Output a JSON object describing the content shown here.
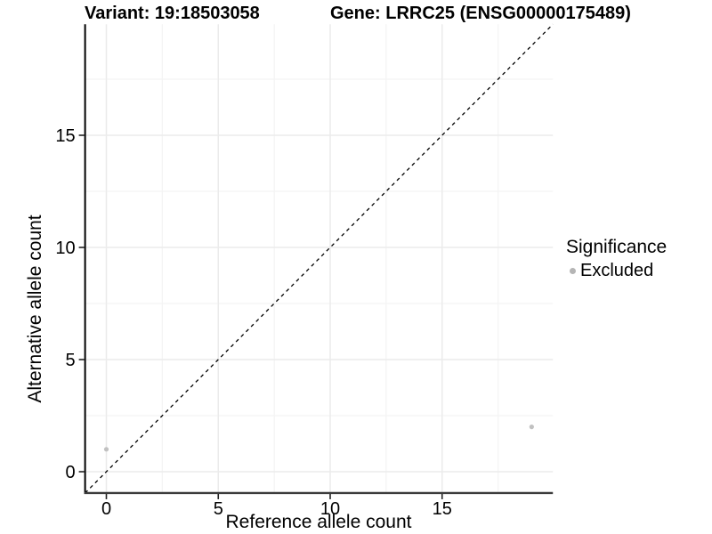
{
  "titles": {
    "variant": "Variant: 19:18503058",
    "gene": "Gene: LRRC25 (ENSG00000175489)"
  },
  "legend": {
    "title": "Significance",
    "items": [
      {
        "label": "Excluded",
        "color": "#b5b5b5"
      }
    ]
  },
  "chart_data": {
    "type": "scatter",
    "title": "Variant: 19:18503058 / Gene: LRRC25 (ENSG00000175489)",
    "xlabel": "Reference allele count",
    "ylabel": "Alternative allele count",
    "xlim": [
      -0.95,
      19.95
    ],
    "ylim": [
      -0.95,
      19.95
    ],
    "x_ticks": [
      0,
      5,
      10,
      15
    ],
    "y_ticks": [
      0,
      5,
      10,
      15
    ],
    "x_minor_ticks": [
      2.5,
      7.5,
      12.5,
      17.5
    ],
    "y_minor_ticks": [
      2.5,
      7.5,
      12.5,
      17.5
    ],
    "grid": true,
    "legend_position": "right",
    "legend_title": "Significance",
    "series": [
      {
        "name": "Excluded",
        "color": "#c1c1c1",
        "points": [
          [
            0,
            1
          ],
          [
            19,
            2
          ]
        ]
      }
    ],
    "reference_line": {
      "type": "identity",
      "slope": 1,
      "intercept": 0,
      "style": "dashed",
      "color": "#000000"
    }
  },
  "colors": {
    "background": "#ffffff",
    "grid_major": "#ebebeb",
    "grid_minor": "#f4f4f4",
    "axis_line_left": "#000000",
    "axis_line_bottom": "#3c3c3c",
    "tick": "#222222",
    "tick_label": "#000000"
  }
}
